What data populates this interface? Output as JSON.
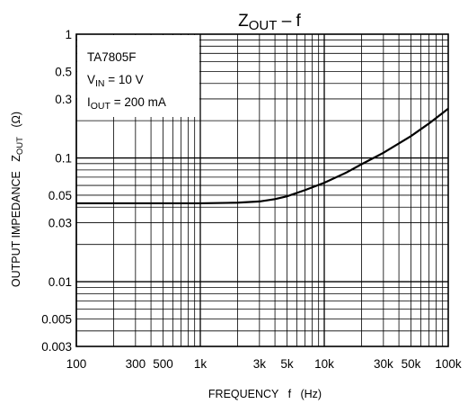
{
  "chart_data": {
    "type": "line",
    "title": {
      "main": "Z",
      "sub": "OUT",
      "suffix": " – f"
    },
    "xlabel": "FREQUENCY   f   (Hz)",
    "ylabel": "OUTPUT IMPEDANCE   Z",
    "ylabel_sub": "OUT",
    "ylabel_unit": "(Ω)",
    "x_scale": "log",
    "y_scale": "log",
    "xlim": [
      100,
      100000
    ],
    "ylim": [
      0.003,
      1
    ],
    "grid": true,
    "x_ticks": [
      {
        "value": 100,
        "label": "100"
      },
      {
        "value": 300,
        "label": "300"
      },
      {
        "value": 500,
        "label": "500"
      },
      {
        "value": 1000,
        "label": "1k"
      },
      {
        "value": 3000,
        "label": "3k"
      },
      {
        "value": 5000,
        "label": "5k"
      },
      {
        "value": 10000,
        "label": "10k"
      },
      {
        "value": 30000,
        "label": "30k"
      },
      {
        "value": 50000,
        "label": "50k"
      },
      {
        "value": 100000,
        "label": "100k"
      }
    ],
    "y_ticks": [
      {
        "value": 1,
        "label": "1"
      },
      {
        "value": 0.5,
        "label": "0.5"
      },
      {
        "value": 0.3,
        "label": "0.3"
      },
      {
        "value": 0.1,
        "label": "0.1"
      },
      {
        "value": 0.05,
        "label": "0.05"
      },
      {
        "value": 0.03,
        "label": "0.03"
      },
      {
        "value": 0.01,
        "label": "0.01"
      },
      {
        "value": 0.005,
        "label": "0.005"
      },
      {
        "value": 0.003,
        "label": "0.003"
      }
    ],
    "annotation": {
      "device": "TA7805F",
      "vin": {
        "main": "V",
        "sub": "IN",
        "rest": " = 10 V"
      },
      "iout": {
        "main": "I",
        "sub": "OUT",
        "rest": " = 200 mA"
      }
    },
    "series": [
      {
        "x": [
          100,
          200,
          500,
          1000,
          2000,
          3000,
          4000,
          5000,
          7000,
          10000,
          15000,
          20000,
          30000,
          50000,
          70000,
          100000
        ],
        "y": [
          0.043,
          0.043,
          0.043,
          0.043,
          0.0435,
          0.0445,
          0.0465,
          0.049,
          0.055,
          0.063,
          0.076,
          0.089,
          0.11,
          0.15,
          0.19,
          0.25
        ]
      }
    ]
  }
}
